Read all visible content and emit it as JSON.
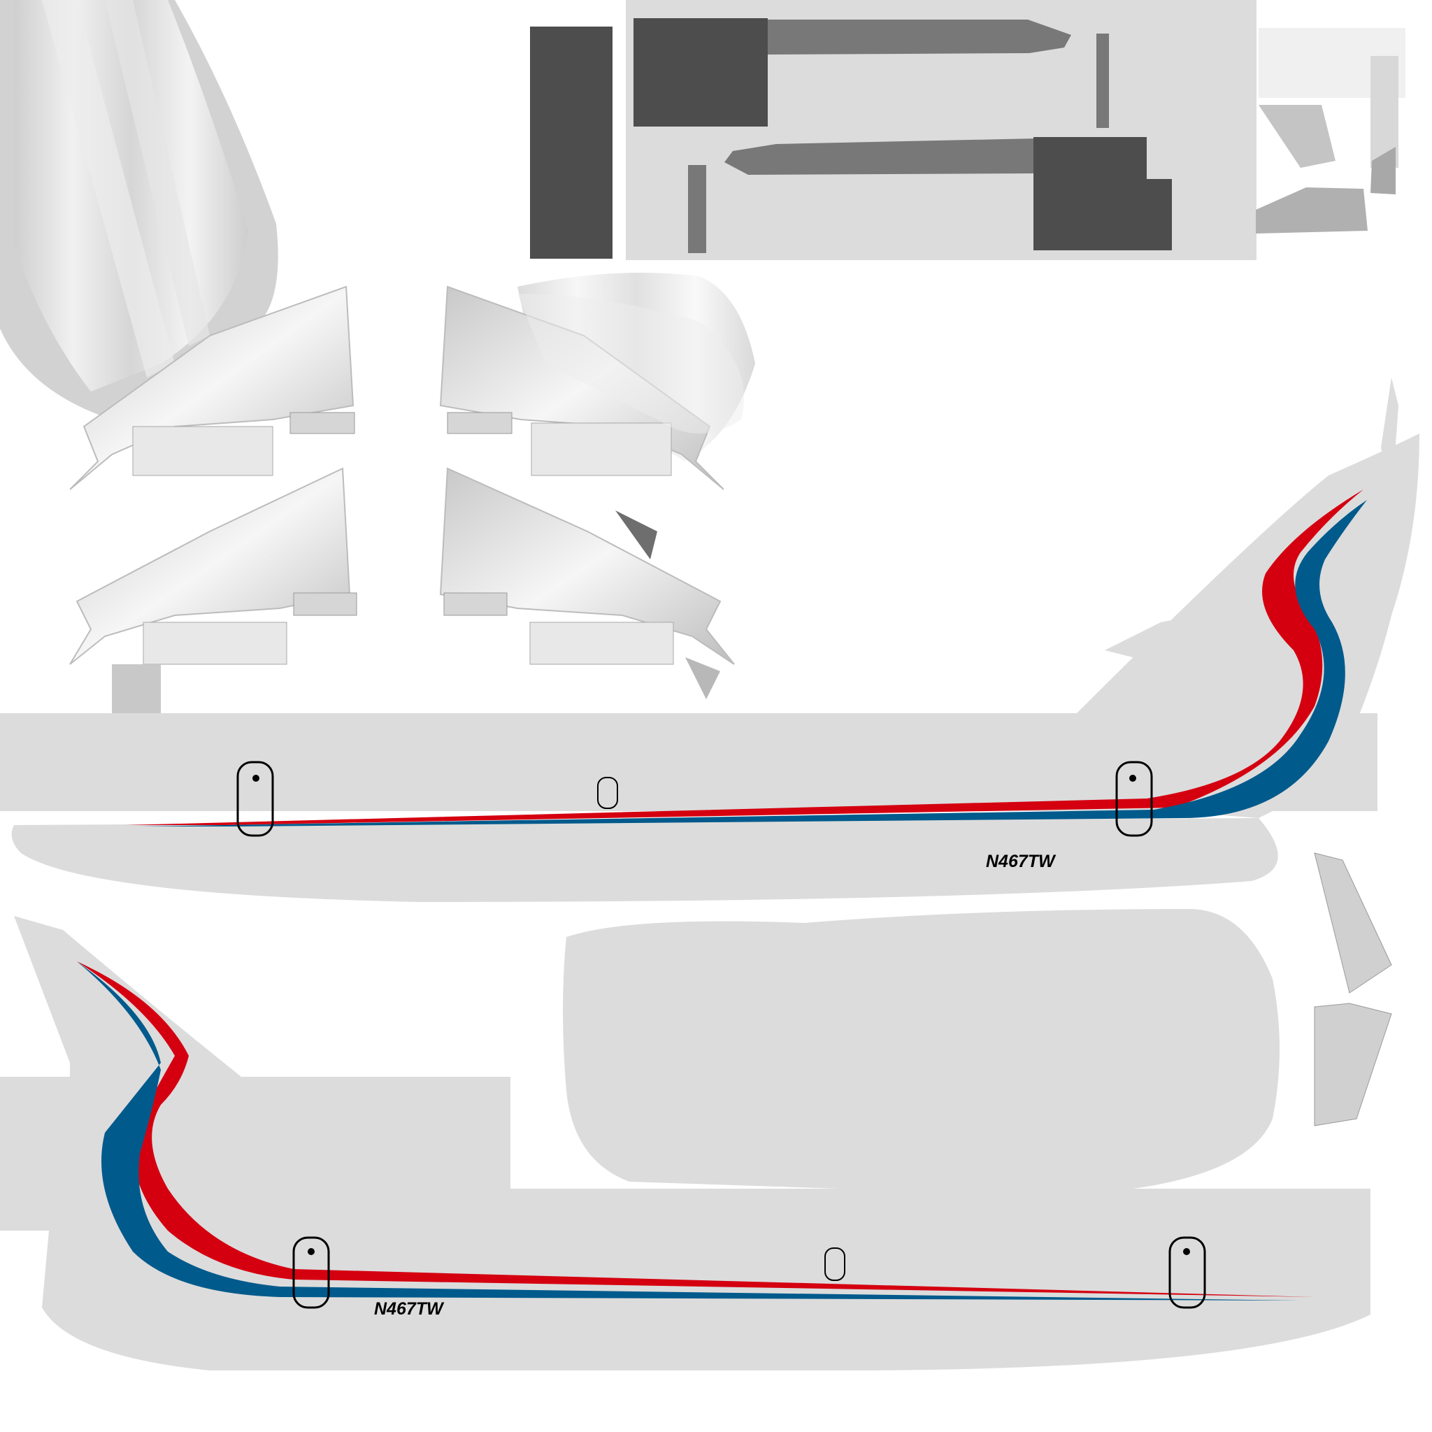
{
  "livery": {
    "registration": "N467TW",
    "colors": {
      "fuselage": "#dcdcdc",
      "red_stripe": "#d40010",
      "blue_stripe": "#005a8c",
      "dark_panel": "#4d4d4d",
      "mid_panel": "#787878",
      "background": "#ffffff"
    }
  }
}
